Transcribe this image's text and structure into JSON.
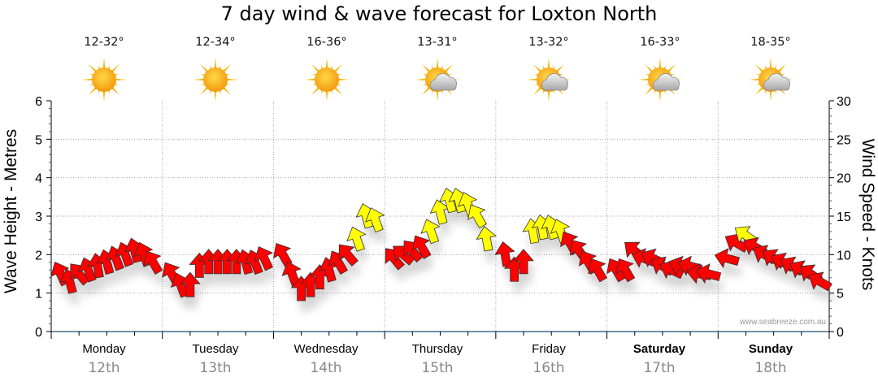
{
  "title": "7 day wind & wave forecast for Loxton North",
  "credit": "www.seabreeze.com.au",
  "colors": {
    "strong_wind": "#FFFF00",
    "light_wind": "#FF0000",
    "arrow_outline": "#333333",
    "grid": "#aaaaaa",
    "axis": "#1f4e6e"
  },
  "days": [
    {
      "day": "Monday",
      "date": "12th",
      "temp": "12-32°",
      "icon": "sunny-icon",
      "bold": false
    },
    {
      "day": "Tuesday",
      "date": "13th",
      "temp": "12-34°",
      "icon": "sunny-icon",
      "bold": false
    },
    {
      "day": "Wednesday",
      "date": "14th",
      "temp": "16-36°",
      "icon": "sunny-icon",
      "bold": false
    },
    {
      "day": "Thursday",
      "date": "15th",
      "temp": "13-31°",
      "icon": "partly-cloudy-icon",
      "bold": false
    },
    {
      "day": "Friday",
      "date": "16th",
      "temp": "13-32°",
      "icon": "partly-cloudy-icon",
      "bold": false
    },
    {
      "day": "Saturday",
      "date": "17th",
      "temp": "16-33°",
      "icon": "partly-cloudy-icon",
      "bold": true
    },
    {
      "day": "Sunday",
      "date": "18th",
      "temp": "18-35°",
      "icon": "partly-cloudy-icon",
      "bold": true
    }
  ],
  "chart_data": {
    "type": "scatter",
    "title": "7 day wind & wave forecast for Loxton North",
    "ylabel": "Wave Height - Metres",
    "y2label": "Wind Speed - Knots",
    "ylim": [
      0,
      6
    ],
    "y2lim": [
      0,
      30
    ],
    "yticks": [
      "0",
      "1",
      "2",
      "3",
      "4",
      "5",
      "6"
    ],
    "y2ticks": [
      "0",
      "5",
      "10",
      "15",
      "20",
      "25",
      "30"
    ],
    "grid": true,
    "x_unit": "hours from Monday 00:00",
    "xlim": [
      0,
      168
    ],
    "yellow_threshold_knots": 12,
    "wind": {
      "hours": [
        2,
        4,
        6,
        8,
        10,
        12,
        14,
        16,
        18,
        20,
        22,
        26,
        28,
        30,
        32,
        34,
        36,
        38,
        40,
        42,
        44,
        46,
        50,
        52,
        54,
        56,
        58,
        60,
        62,
        64,
        66,
        68,
        70,
        74,
        76,
        78,
        80,
        82,
        84,
        86,
        88,
        90,
        92,
        94,
        98,
        100,
        102,
        104,
        106,
        108,
        110,
        112,
        114,
        116,
        118,
        122,
        124,
        126,
        128,
        130,
        132,
        134,
        136,
        138,
        140,
        142,
        146,
        148,
        150,
        152,
        154,
        156,
        158,
        160,
        162,
        164,
        166
      ],
      "knots": [
        7.5,
        6.5,
        7.5,
        8,
        8.5,
        9,
        9.5,
        10,
        10.5,
        10,
        9,
        7.5,
        6,
        6,
        8.5,
        9,
        9,
        9,
        9,
        9,
        9,
        9.5,
        10,
        7.5,
        5.5,
        6,
        7,
        8,
        9,
        10,
        12,
        15,
        14.5,
        9.5,
        10,
        10.5,
        11,
        13,
        15.5,
        17,
        17,
        16.5,
        15,
        12,
        10,
        8,
        9,
        13,
        13.5,
        13.5,
        13,
        11.5,
        10.5,
        9,
        8,
        8,
        8,
        10.5,
        9.5,
        9.5,
        8.5,
        8,
        8.5,
        8.5,
        7.5,
        7.5,
        9.5,
        11.5,
        12.5,
        11,
        10,
        9.5,
        9,
        8.5,
        8,
        7.5,
        6.5
      ],
      "direction_deg": [
        335,
        345,
        320,
        340,
        350,
        345,
        340,
        340,
        345,
        340,
        330,
        330,
        340,
        0,
        0,
        0,
        0,
        0,
        0,
        345,
        340,
        335,
        330,
        340,
        0,
        0,
        0,
        345,
        330,
        320,
        340,
        345,
        340,
        320,
        310,
        320,
        330,
        340,
        345,
        345,
        345,
        340,
        330,
        350,
        350,
        0,
        0,
        350,
        350,
        345,
        340,
        330,
        325,
        330,
        330,
        330,
        330,
        310,
        290,
        295,
        300,
        295,
        290,
        285,
        280,
        285,
        285,
        300,
        305,
        300,
        300,
        305,
        300,
        300,
        300,
        305,
        300
      ]
    },
    "wave_height_m": []
  }
}
